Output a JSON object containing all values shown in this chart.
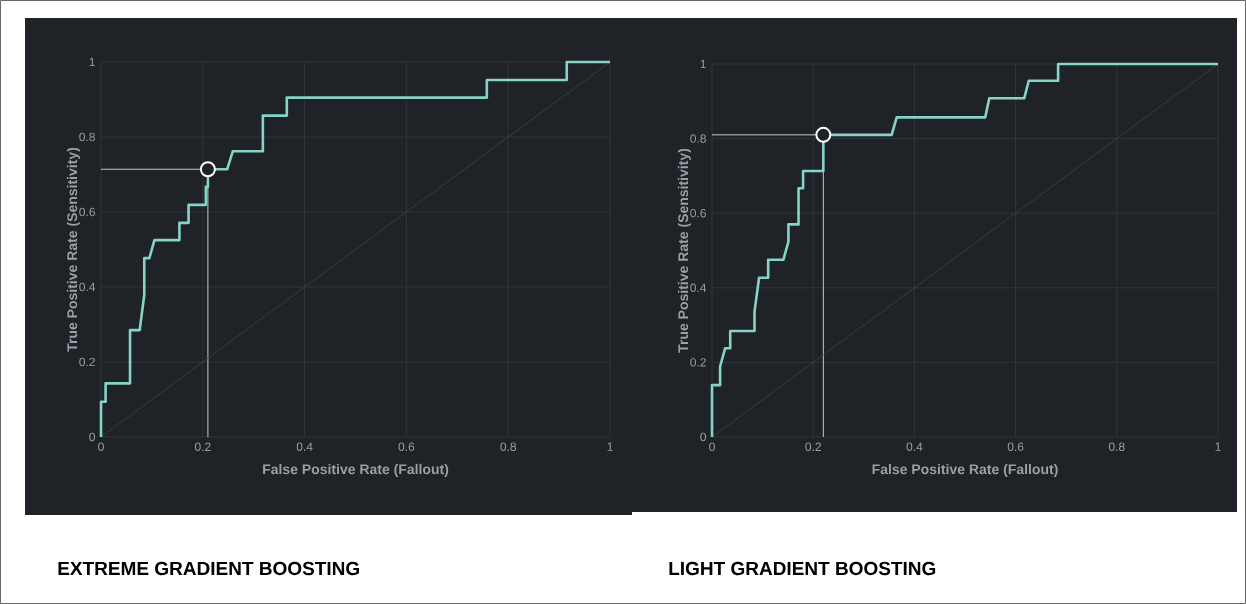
{
  "chart_data": [
    {
      "type": "line",
      "title": "EXTREME GRADIENT BOOSTING",
      "xlabel": "False Positive Rate (Fallout)",
      "ylabel": "True Positive Rate (Sensitivity)",
      "xlim": [
        0,
        1
      ],
      "ylim": [
        0,
        1
      ],
      "xticks": [
        0,
        0.2,
        0.4,
        0.6,
        0.8,
        1
      ],
      "yticks": [
        0,
        0.2,
        0.4,
        0.6,
        0.8,
        1
      ],
      "grid": true,
      "series": [
        {
          "color": "#3a4745",
          "x": [
            0,
            1
          ],
          "values": [
            0,
            1
          ]
        },
        {
          "color": "#86d4c4",
          "x": [
            0,
            0,
            0.009,
            0.009,
            0.057,
            0.057,
            0.076,
            0.085,
            0.085,
            0.095,
            0.105,
            0.154,
            0.154,
            0.172,
            0.172,
            0.206,
            0.206,
            0.21,
            0.21,
            0.248,
            0.259,
            0.318,
            0.318,
            0.365,
            0.365,
            0.758,
            0.758,
            0.915,
            0.915,
            1
          ],
          "values": [
            0,
            0.094,
            0.094,
            0.143,
            0.143,
            0.285,
            0.285,
            0.379,
            0.477,
            0.477,
            0.525,
            0.525,
            0.571,
            0.571,
            0.619,
            0.619,
            0.667,
            0.667,
            0.714,
            0.714,
            0.762,
            0.762,
            0.857,
            0.857,
            0.905,
            0.905,
            0.952,
            0.952,
            1,
            1
          ]
        },
        {
          "type": "scatter",
          "marker": "circle",
          "color": "#ffffff",
          "x": [
            0.21
          ],
          "values": [
            0.714
          ]
        }
      ],
      "ref_lines": [
        {
          "axis": "x",
          "value": 0.21,
          "color": "#c8c8c8"
        },
        {
          "axis": "y",
          "value": 0.714,
          "color": "#c8c8c8"
        }
      ]
    },
    {
      "type": "line",
      "title": "LIGHT GRADIENT BOOSTING",
      "xlabel": "False Positive Rate (Fallout)",
      "ylabel": "True Positive Rate (Sensitivity)",
      "xlim": [
        0,
        1
      ],
      "ylim": [
        0,
        1
      ],
      "xticks": [
        0,
        0.2,
        0.4,
        0.6,
        0.8,
        1
      ],
      "yticks": [
        0,
        0.2,
        0.4,
        0.6,
        0.8,
        1
      ],
      "grid": true,
      "series": [
        {
          "color": "#3a4745",
          "x": [
            0,
            1
          ],
          "values": [
            0,
            1
          ]
        },
        {
          "color": "#86d4c4",
          "x": [
            0,
            0,
            0.016,
            0.016,
            0.026,
            0.036,
            0.036,
            0.084,
            0.084,
            0.093,
            0.111,
            0.111,
            0.141,
            0.151,
            0.151,
            0.171,
            0.171,
            0.18,
            0.18,
            0.22,
            0.22,
            0.355,
            0.365,
            0.54,
            0.548,
            0.617,
            0.626,
            0.684,
            0.684,
            1
          ],
          "values": [
            0,
            0.139,
            0.139,
            0.189,
            0.238,
            0.238,
            0.284,
            0.284,
            0.336,
            0.427,
            0.427,
            0.475,
            0.475,
            0.524,
            0.57,
            0.57,
            0.667,
            0.667,
            0.713,
            0.713,
            0.81,
            0.81,
            0.857,
            0.857,
            0.908,
            0.908,
            0.955,
            0.955,
            1,
            1
          ]
        },
        {
          "type": "scatter",
          "marker": "circle",
          "color": "#ffffff",
          "x": [
            0.22
          ],
          "values": [
            0.81
          ]
        }
      ],
      "ref_lines": [
        {
          "axis": "x",
          "value": 0.22,
          "color": "#c8c8c8"
        },
        {
          "axis": "y",
          "value": 0.81,
          "color": "#c8c8c8"
        }
      ]
    }
  ]
}
